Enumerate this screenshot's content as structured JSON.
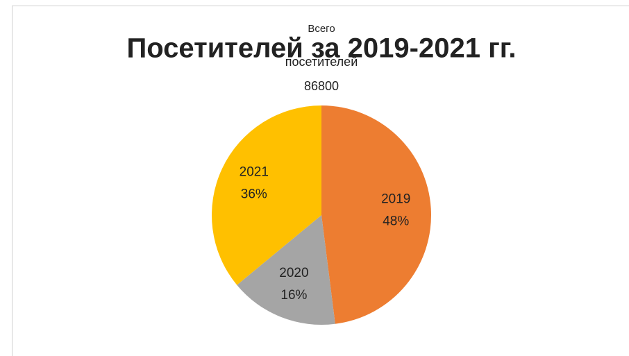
{
  "chart_data": {
    "type": "pie",
    "title": "Посетителей за 2019-2021 гг.",
    "annotation": [
      "Всего",
      "посетителей"
    ],
    "total": 86800,
    "categories": [
      "2019",
      "2020",
      "2021"
    ],
    "values": [
      48,
      16,
      36
    ],
    "value_labels": [
      "48%",
      "16%",
      "36%"
    ],
    "colors": [
      "#ed7d31",
      "#a5a5a5",
      "#ffc000"
    ]
  }
}
